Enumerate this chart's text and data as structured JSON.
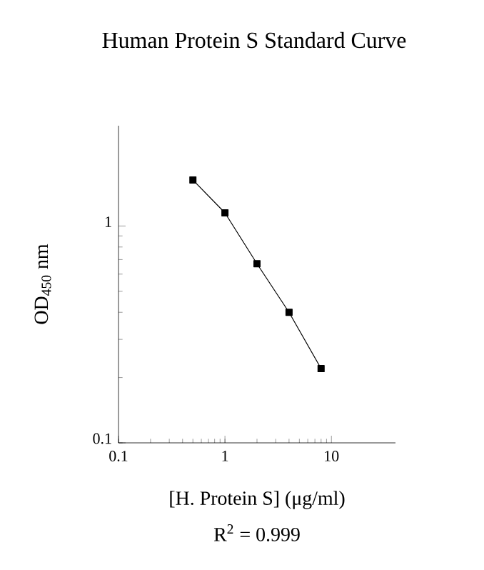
{
  "chart_data": {
    "type": "line",
    "title": "Human Protein S Standard Curve",
    "xlabel": "[H. Protein S] (μg/ml)",
    "ylabel": "OD$_{450}$ nm",
    "annotations": [
      "R$^{2}$ = 0.999"
    ],
    "log": "xy",
    "x": [
      0.5,
      1,
      2,
      4,
      8
    ],
    "series": [
      {
        "color": "#000000",
        "values": [
          1.63,
          1.15,
          0.67,
          0.4,
          0.22
        ]
      }
    ],
    "xlim": [
      0.1,
      40
    ],
    "ylim": [
      0.1,
      2.9
    ],
    "xticks": [
      0.1,
      1,
      10
    ],
    "yticks": [
      0.1,
      1
    ],
    "marker": "square",
    "line_style": "solid"
  }
}
